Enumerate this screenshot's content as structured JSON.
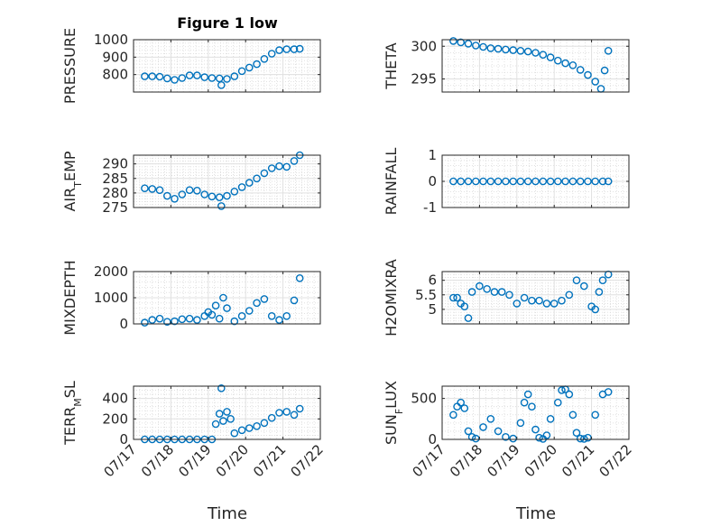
{
  "figure": {
    "title": "Figure 1 low",
    "xlabel": "Time",
    "marker_color": "#0072BD",
    "grid": true
  },
  "chart_data": [
    {
      "type": "scatter",
      "ylabel": "PRESSURE",
      "ylim": [
        700,
        1000
      ],
      "yticks": [
        800,
        900,
        1000
      ],
      "xlim": [
        17,
        22
      ],
      "xticks": [
        "07/17",
        "07/18",
        "07/19",
        "07/20",
        "07/21",
        "07/22"
      ],
      "x": [
        17.3,
        17.5,
        17.7,
        17.9,
        18.1,
        18.3,
        18.5,
        18.7,
        18.9,
        19.1,
        19.3,
        19.35,
        19.5,
        19.7,
        19.9,
        20.1,
        20.3,
        20.5,
        20.7,
        20.9,
        21.1,
        21.3,
        21.45
      ],
      "y": [
        790,
        790,
        788,
        778,
        770,
        780,
        795,
        795,
        785,
        780,
        778,
        740,
        775,
        790,
        820,
        840,
        860,
        890,
        920,
        940,
        945,
        945,
        948
      ]
    },
    {
      "type": "scatter",
      "ylabel": "THETA",
      "ylim": [
        293,
        301
      ],
      "yticks": [
        295,
        300
      ],
      "xlim": [
        17,
        22
      ],
      "xticks": [
        "07/17",
        "07/18",
        "07/19",
        "07/20",
        "07/21",
        "07/22"
      ],
      "x": [
        17.3,
        17.5,
        17.7,
        17.9,
        18.1,
        18.3,
        18.5,
        18.7,
        18.9,
        19.1,
        19.3,
        19.5,
        19.7,
        19.9,
        20.1,
        20.3,
        20.5,
        20.7,
        20.9,
        21.1,
        21.25,
        21.35,
        21.45
      ],
      "y": [
        300.8,
        300.6,
        300.4,
        300.1,
        299.9,
        299.7,
        299.6,
        299.5,
        299.4,
        299.3,
        299.2,
        299.0,
        298.7,
        298.3,
        297.8,
        297.4,
        297.1,
        296.4,
        295.6,
        294.6,
        293.5,
        296.3,
        299.3
      ]
    },
    {
      "type": "scatter",
      "ylabel": "AIR_TEMP",
      "ylim": [
        275,
        293
      ],
      "yticks": [
        275,
        280,
        285,
        290
      ],
      "xlim": [
        17,
        22
      ],
      "xticks": [
        "07/17",
        "07/18",
        "07/19",
        "07/20",
        "07/21",
        "07/22"
      ],
      "x": [
        17.3,
        17.5,
        17.7,
        17.9,
        18.1,
        18.3,
        18.5,
        18.7,
        18.9,
        19.1,
        19.3,
        19.35,
        19.5,
        19.7,
        19.9,
        20.1,
        20.3,
        20.5,
        20.7,
        20.9,
        21.1,
        21.3,
        21.45
      ],
      "y": [
        281.6,
        281.4,
        281.0,
        279.0,
        278.0,
        279.5,
        281.0,
        280.8,
        279.5,
        278.8,
        278.5,
        275.5,
        279.0,
        280.5,
        282.0,
        283.5,
        285.0,
        286.8,
        288.5,
        289.2,
        289.0,
        291.0,
        293.0
      ]
    },
    {
      "type": "scatter",
      "ylabel": "RAINFALL",
      "ylim": [
        -1,
        1
      ],
      "yticks": [
        -1,
        0,
        1
      ],
      "xlim": [
        17,
        22
      ],
      "xticks": [
        "07/17",
        "07/18",
        "07/19",
        "07/20",
        "07/21",
        "07/22"
      ],
      "x": [
        17.3,
        17.5,
        17.7,
        17.9,
        18.1,
        18.3,
        18.5,
        18.7,
        18.9,
        19.1,
        19.3,
        19.5,
        19.7,
        19.9,
        20.1,
        20.3,
        20.5,
        20.7,
        20.9,
        21.1,
        21.3,
        21.45
      ],
      "y": [
        0,
        0,
        0,
        0,
        0,
        0,
        0,
        0,
        0,
        0,
        0,
        0,
        0,
        0,
        0,
        0,
        0,
        0,
        0,
        0,
        0,
        0
      ]
    },
    {
      "type": "scatter",
      "ylabel": "MIXDEPTH",
      "ylim": [
        0,
        2000
      ],
      "yticks": [
        0,
        1000,
        2000
      ],
      "xlim": [
        17,
        22
      ],
      "xticks": [
        "07/17",
        "07/18",
        "07/19",
        "07/20",
        "07/21",
        "07/22"
      ],
      "x": [
        17.3,
        17.5,
        17.7,
        17.9,
        18.1,
        18.3,
        18.5,
        18.7,
        18.9,
        19.0,
        19.1,
        19.2,
        19.3,
        19.4,
        19.5,
        19.7,
        19.9,
        20.1,
        20.3,
        20.5,
        20.7,
        20.9,
        21.1,
        21.3,
        21.45
      ],
      "y": [
        50,
        150,
        200,
        80,
        100,
        180,
        200,
        150,
        300,
        450,
        350,
        700,
        200,
        1000,
        600,
        100,
        300,
        500,
        800,
        950,
        300,
        150,
        300,
        900,
        1750
      ]
    },
    {
      "type": "scatter",
      "ylabel": "H2OMIXRA",
      "ylim": [
        4.5,
        6.3
      ],
      "yticks": [
        5,
        5.5,
        6
      ],
      "xlim": [
        17,
        22
      ],
      "xticks": [
        "07/17",
        "07/18",
        "07/19",
        "07/20",
        "07/21",
        "07/22"
      ],
      "x": [
        17.3,
        17.4,
        17.5,
        17.6,
        17.7,
        17.8,
        18.0,
        18.2,
        18.4,
        18.6,
        18.8,
        19.0,
        19.2,
        19.4,
        19.6,
        19.8,
        20.0,
        20.2,
        20.4,
        20.6,
        20.8,
        21.0,
        21.1,
        21.2,
        21.3,
        21.45
      ],
      "y": [
        5.4,
        5.4,
        5.2,
        5.1,
        4.7,
        5.6,
        5.8,
        5.7,
        5.6,
        5.6,
        5.5,
        5.2,
        5.4,
        5.3,
        5.3,
        5.2,
        5.2,
        5.3,
        5.5,
        6.0,
        5.8,
        5.1,
        5.0,
        5.6,
        6.0,
        6.2
      ]
    },
    {
      "type": "scatter",
      "ylabel": "TERR_MSL",
      "ylim": [
        0,
        520
      ],
      "yticks": [
        0,
        200,
        400
      ],
      "xlim": [
        17,
        22
      ],
      "xticks": [
        "07/17",
        "07/18",
        "07/19",
        "07/20",
        "07/21",
        "07/22"
      ],
      "x": [
        17.3,
        17.5,
        17.7,
        17.9,
        18.1,
        18.3,
        18.5,
        18.7,
        18.9,
        19.1,
        19.2,
        19.3,
        19.35,
        19.4,
        19.5,
        19.6,
        19.7,
        19.9,
        20.1,
        20.3,
        20.5,
        20.7,
        20.9,
        21.1,
        21.3,
        21.45
      ],
      "y": [
        0,
        0,
        0,
        0,
        0,
        0,
        0,
        0,
        0,
        0,
        150,
        250,
        500,
        180,
        270,
        200,
        60,
        90,
        110,
        130,
        160,
        210,
        260,
        270,
        240,
        300
      ]
    },
    {
      "type": "scatter",
      "ylabel": "SUN_FLUX",
      "ylim": [
        0,
        650
      ],
      "yticks": [
        0,
        500
      ],
      "xlim": [
        17,
        22
      ],
      "xticks": [
        "07/17",
        "07/18",
        "07/19",
        "07/20",
        "07/21",
        "07/22"
      ],
      "x": [
        17.3,
        17.4,
        17.5,
        17.6,
        17.7,
        17.8,
        17.9,
        18.1,
        18.3,
        18.5,
        18.7,
        18.9,
        19.1,
        19.2,
        19.3,
        19.4,
        19.5,
        19.6,
        19.7,
        19.8,
        19.9,
        20.1,
        20.2,
        20.3,
        20.4,
        20.5,
        20.6,
        20.7,
        20.8,
        20.9,
        21.1,
        21.3,
        21.45
      ],
      "y": [
        300,
        400,
        450,
        380,
        100,
        30,
        10,
        150,
        250,
        100,
        30,
        10,
        200,
        450,
        550,
        400,
        120,
        20,
        5,
        50,
        250,
        450,
        600,
        610,
        550,
        300,
        80,
        10,
        5,
        20,
        300,
        550,
        580
      ]
    }
  ]
}
